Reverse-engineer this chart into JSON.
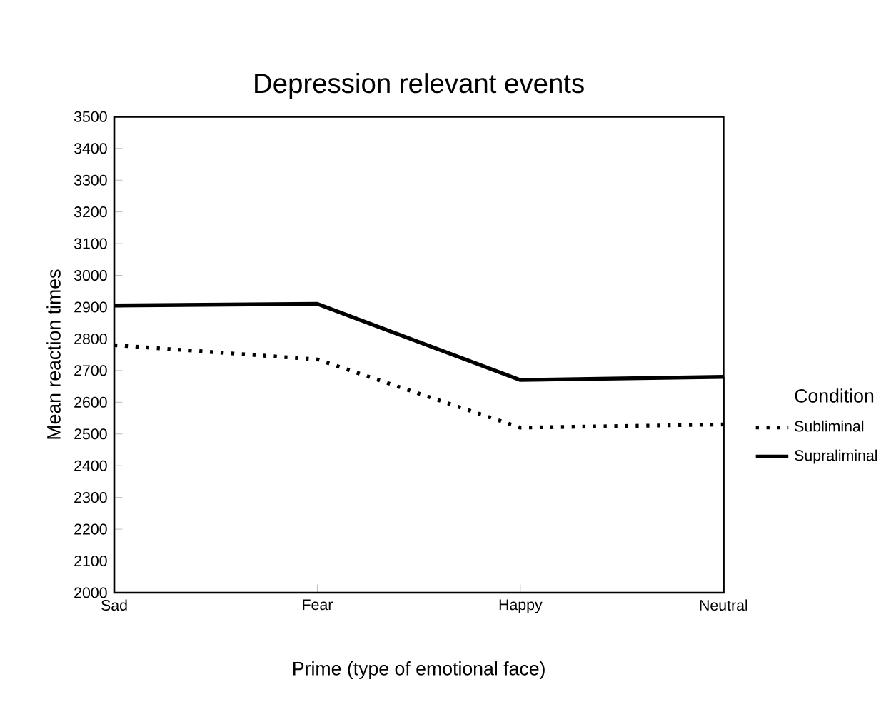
{
  "chart_data": {
    "type": "line",
    "title": "Depression relevant events",
    "xlabel": "Prime (type of emotional face)",
    "ylabel": "Mean reaction times",
    "legend_title": "Condition",
    "categories": [
      "Sad",
      "Fear",
      "Happy",
      "Neutral"
    ],
    "series": [
      {
        "name": "Subliminal",
        "color": "#000000",
        "line_style": "dotted",
        "values": [
          2780,
          2735,
          2520,
          2530
        ]
      },
      {
        "name": "Supraliminal",
        "color": "#000000",
        "line_style": "solid",
        "values": [
          2905,
          2910,
          2670,
          2680
        ]
      }
    ],
    "ylim": [
      2000,
      3500
    ],
    "yticks": [
      2000,
      2100,
      2200,
      2300,
      2400,
      2500,
      2600,
      2700,
      2800,
      2900,
      3000,
      3100,
      3200,
      3300,
      3400,
      3500
    ],
    "grid": false,
    "legend": "right",
    "marker": "none"
  }
}
